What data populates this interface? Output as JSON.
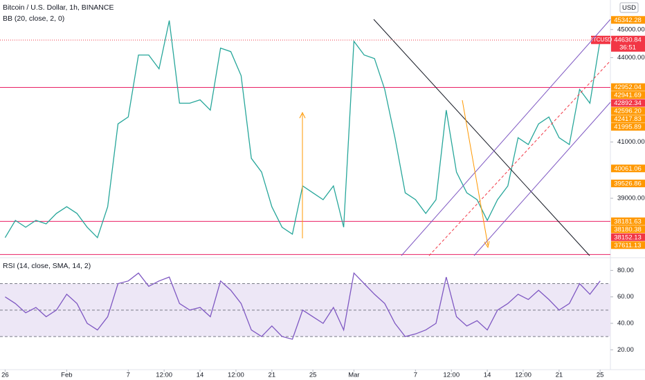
{
  "header": {
    "title": "Bitcoin / U.S. Dollar, 1h, BINANCE",
    "indicator": "BB (20, close, 2, 0)",
    "currency": "USD"
  },
  "chart_data": [
    {
      "type": "line",
      "title": "BTCUSD",
      "x": [
        0,
        1,
        2,
        3,
        4,
        5,
        6,
        7,
        8,
        9,
        10,
        11,
        12,
        13,
        14,
        15,
        16,
        17,
        18,
        19,
        20,
        21,
        22,
        23,
        24,
        25,
        26,
        27,
        28,
        29,
        30,
        31,
        32,
        33,
        34,
        35,
        36,
        37,
        38,
        39,
        40,
        41,
        42,
        43,
        44,
        45,
        46,
        47,
        48,
        49,
        50,
        51,
        52,
        53,
        54,
        55,
        56,
        57,
        58
      ],
      "values": [
        37600,
        38214,
        37970,
        38214,
        38090,
        38460,
        38700,
        38460,
        37970,
        37600,
        38700,
        41644,
        41890,
        44094,
        44094,
        43604,
        45320,
        42380,
        42380,
        42500,
        42134,
        44340,
        44216,
        43360,
        40420,
        39930,
        38700,
        37970,
        37724,
        39440,
        39194,
        38950,
        39440,
        37970,
        44584,
        44094,
        43970,
        42870,
        41154,
        39194,
        38950,
        38460,
        38950,
        42134,
        39930,
        39194,
        38950,
        38214,
        38950,
        39440,
        41154,
        40910,
        41644,
        41890,
        41154,
        40910,
        42870,
        42380,
        44630
      ],
      "color": "#26a69a",
      "xlim": [
        -0.5,
        59
      ],
      "ylim": [
        36960,
        46050
      ],
      "yticks": [
        {
          "value": 45000,
          "label": "45000.00"
        },
        {
          "value": 44000,
          "label": "44000.00"
        },
        {
          "value": 41000,
          "label": "41000.00"
        },
        {
          "value": 39000,
          "label": "39000.00"
        }
      ],
      "levels": [
        42941.69,
        38180.38,
        37000
      ],
      "level_color": "#e91e63",
      "last": {
        "symbol": "BTCUSD",
        "value": 44630.84,
        "label": "44630.84",
        "countdown": "36:51",
        "color": "#f23645"
      },
      "price_labels": [
        {
          "value": 45342.28,
          "label": "45342.28",
          "color": "#ff9800"
        },
        {
          "value": 42952.04,
          "label": "42952.04",
          "color": "#ff9800"
        },
        {
          "value": 42941.69,
          "label": "42941.69",
          "color": "#ff9800"
        },
        {
          "value": 42892.34,
          "label": "42892.34",
          "color": "#f23645"
        },
        {
          "value": 42596.2,
          "label": "42596.20",
          "color": "#ff9800"
        },
        {
          "value": 42417.83,
          "label": "42417.83",
          "color": "#ff9800"
        },
        {
          "value": 41995.89,
          "label": "41995.89",
          "color": "#ff9800"
        },
        {
          "value": 40061.06,
          "label": "40061.06",
          "color": "#ff9800"
        },
        {
          "value": 39526.86,
          "label": "39526.86",
          "color": "#ff9800"
        },
        {
          "value": 38181.63,
          "label": "38181.63",
          "color": "#ff9800"
        },
        {
          "value": 38180.38,
          "label": "38180.38",
          "color": "#ff9800"
        },
        {
          "value": 38152.13,
          "label": "38152.13",
          "color": "#f23645"
        },
        {
          "value": 37611.13,
          "label": "37611.13",
          "color": "#ff9800"
        }
      ]
    },
    {
      "type": "line",
      "title": "RSI (14, close, SMA, 14, 2)",
      "x": [
        0,
        1,
        2,
        3,
        4,
        5,
        6,
        7,
        8,
        9,
        10,
        11,
        12,
        13,
        14,
        15,
        16,
        17,
        18,
        19,
        20,
        21,
        22,
        23,
        24,
        25,
        26,
        27,
        28,
        29,
        30,
        31,
        32,
        33,
        34,
        35,
        36,
        37,
        38,
        39,
        40,
        41,
        42,
        43,
        44,
        45,
        46,
        47,
        48,
        49,
        50,
        51,
        52,
        53,
        54,
        55,
        56,
        57,
        58
      ],
      "values": [
        60,
        55,
        48,
        52,
        45,
        50,
        62,
        55,
        40,
        35,
        45,
        70,
        72,
        78,
        68,
        72,
        75,
        55,
        50,
        52,
        45,
        72,
        65,
        55,
        35,
        30,
        38,
        30,
        28,
        50,
        45,
        40,
        52,
        35,
        78,
        70,
        62,
        55,
        40,
        30,
        32,
        35,
        40,
        75,
        45,
        38,
        42,
        35,
        50,
        55,
        62,
        58,
        65,
        58,
        50,
        55,
        70,
        62,
        72
      ],
      "color": "#7e57c2",
      "xlim": [
        -0.5,
        59
      ],
      "ylim": [
        5,
        87
      ],
      "yticks": [
        {
          "value": 80,
          "label": "80.00"
        },
        {
          "value": 60,
          "label": "60.00"
        },
        {
          "value": 40,
          "label": "40.00"
        },
        {
          "value": 20,
          "label": "20.00"
        }
      ],
      "levels": [
        70,
        50,
        30
      ],
      "band_color": "#ede7f6",
      "xticks": [
        {
          "value": 0,
          "label": "26"
        },
        {
          "value": 6,
          "label": "Feb"
        },
        {
          "value": 12,
          "label": "7"
        },
        {
          "value": 15.5,
          "label": "12:00"
        },
        {
          "value": 19,
          "label": "14"
        },
        {
          "value": 22.5,
          "label": "12:00"
        },
        {
          "value": 26,
          "label": "21"
        },
        {
          "value": 30,
          "label": "25"
        },
        {
          "value": 34,
          "label": "Mar"
        },
        {
          "value": 40,
          "label": "7"
        },
        {
          "value": 43.5,
          "label": "12:00"
        },
        {
          "value": 47,
          "label": "14"
        },
        {
          "value": 50.5,
          "label": "12:00"
        },
        {
          "value": 54,
          "label": "21"
        },
        {
          "value": 58,
          "label": "25"
        }
      ]
    }
  ]
}
